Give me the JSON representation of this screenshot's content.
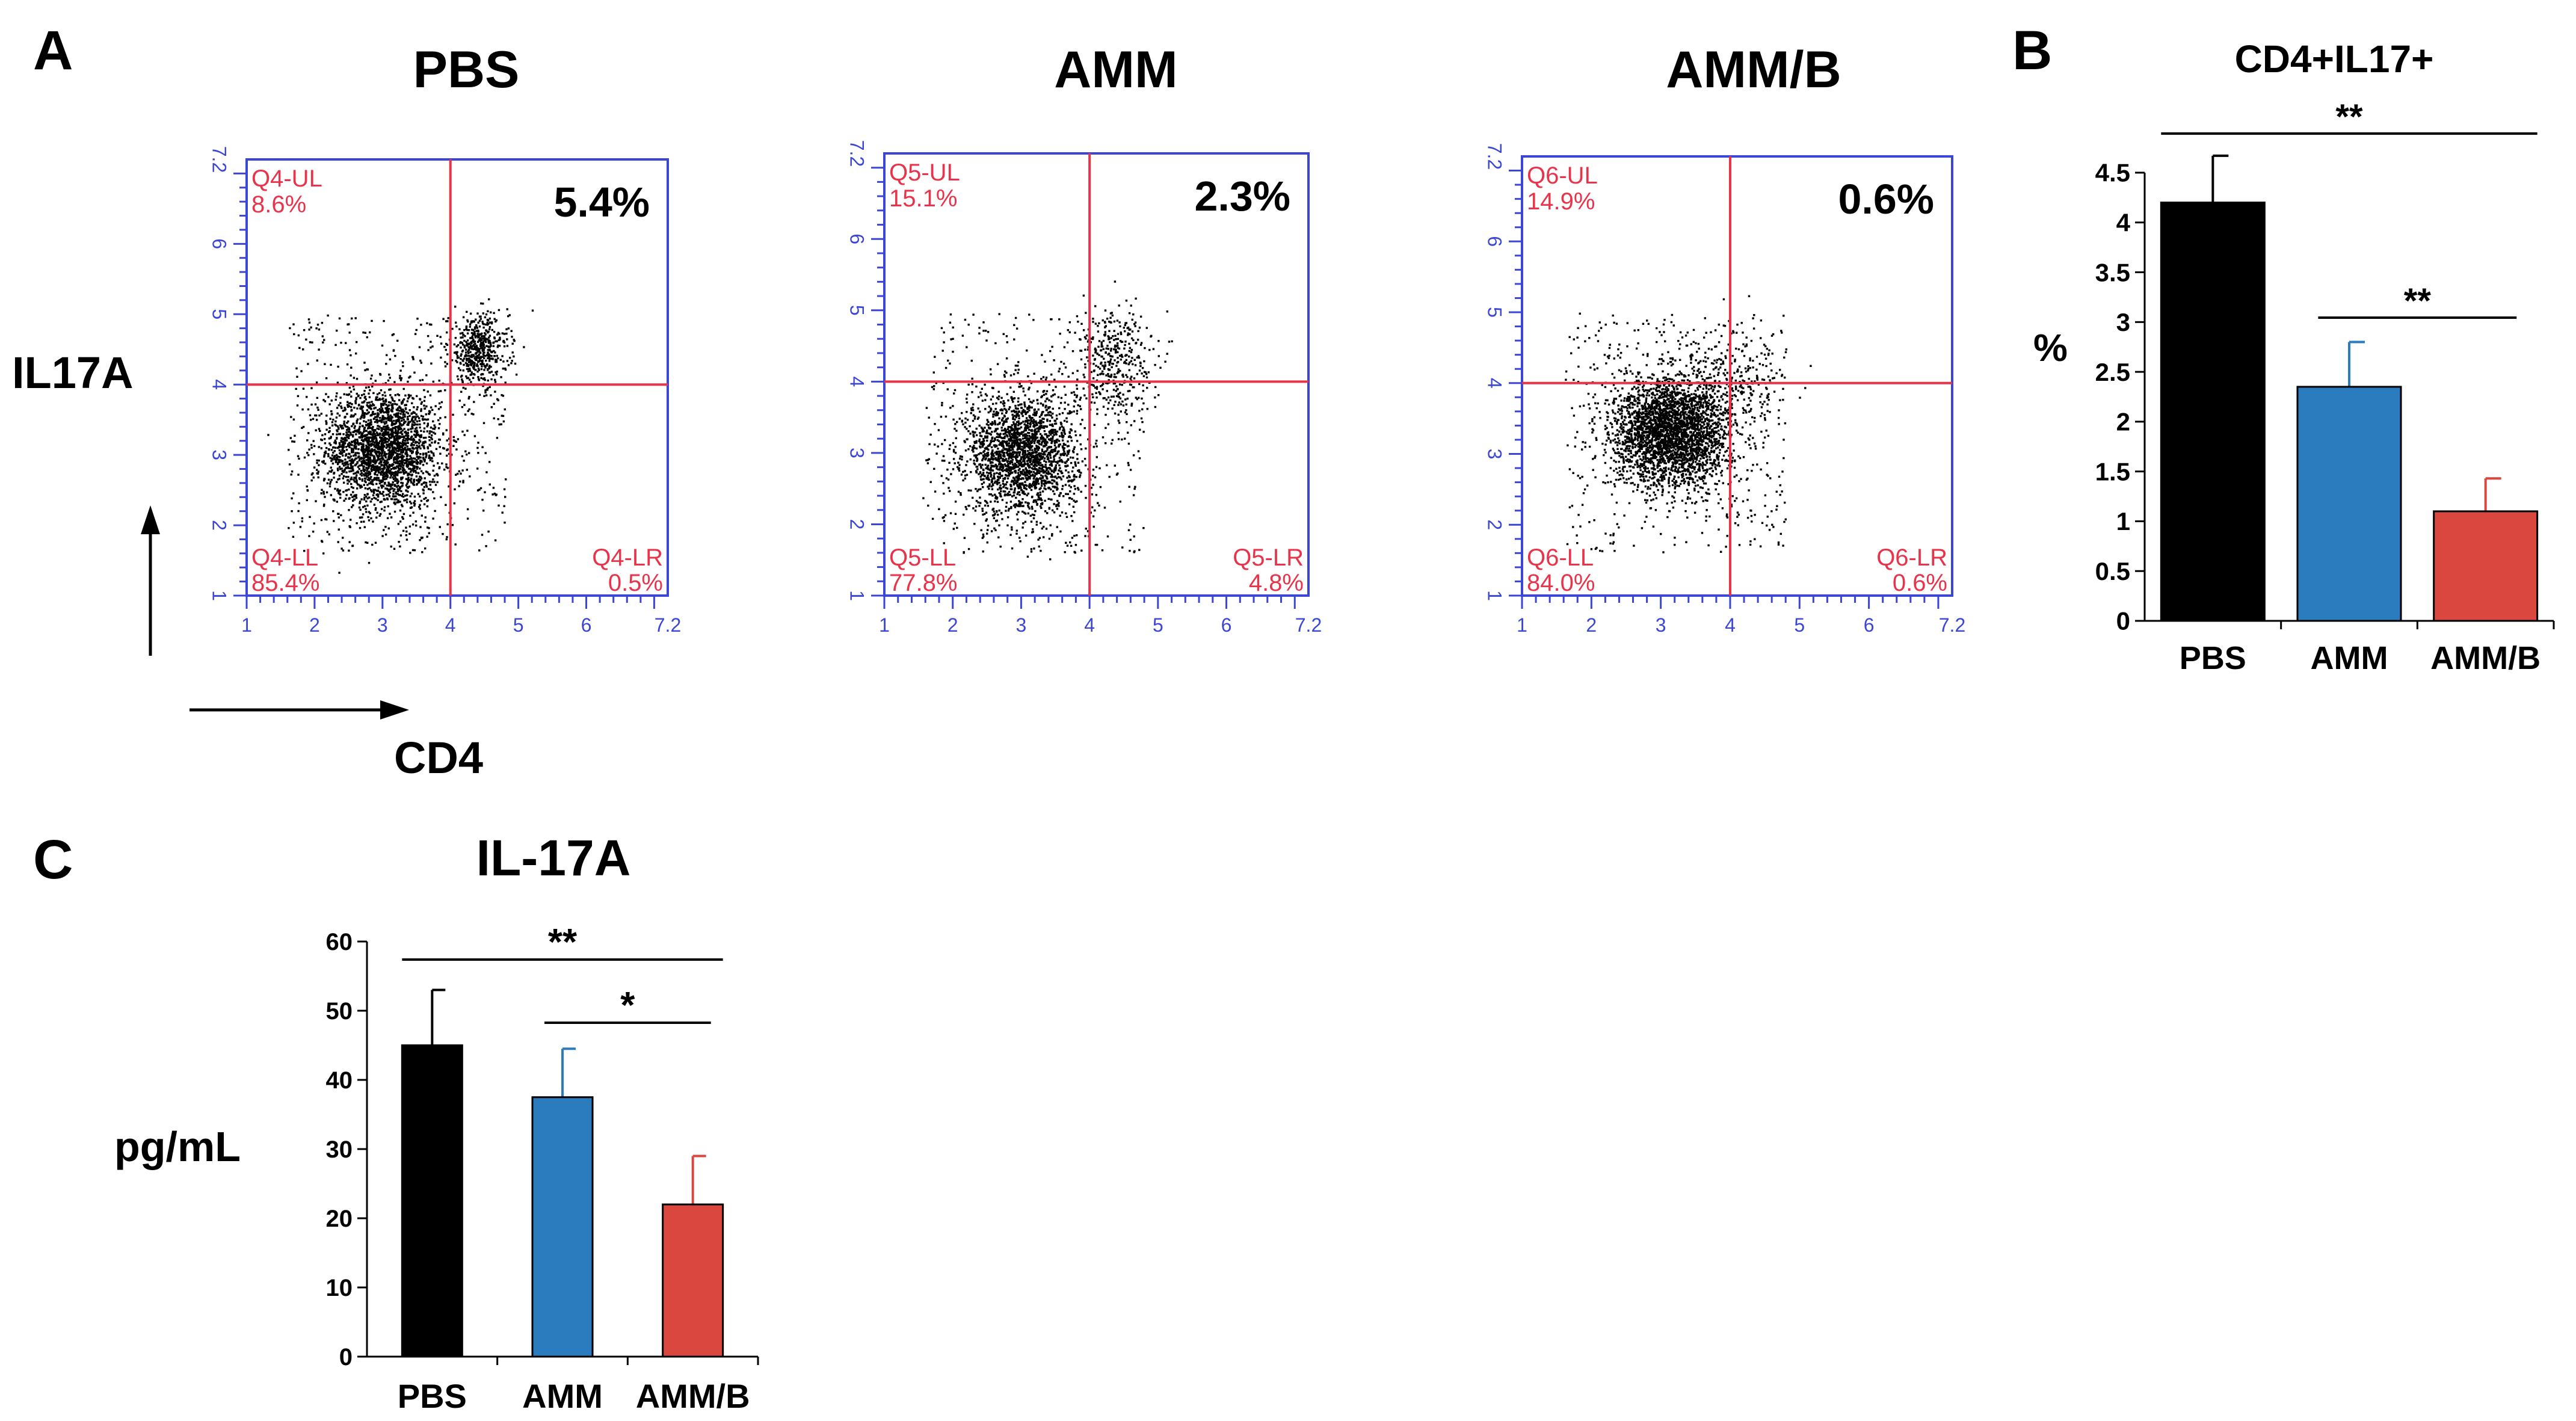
{
  "chart_data": [
    {
      "type": "scatter",
      "panel": "A",
      "panel_label": "A",
      "xlabel": "CD4",
      "ylabel": "IL17A",
      "x_ticks": [
        "1",
        "2",
        "3",
        "4",
        "5",
        "6",
        "7.2"
      ],
      "y_ticks": [
        "1",
        "2",
        "3",
        "4",
        "5",
        "6",
        "7.2"
      ],
      "gate": {
        "x": 4.0,
        "y": 4.0
      },
      "axis_range": [
        1,
        7.2
      ],
      "plots": [
        {
          "title": "PBS",
          "highlight": "5.4%",
          "quadrants": {
            "UL": [
              "Q4-UL",
              "8.6%"
            ],
            "LL": [
              "Q4-LL",
              "85.4%"
            ],
            "LR": [
              "Q4-LR",
              "0.5%"
            ]
          },
          "clusters": [
            {
              "cx": 3.0,
              "cy": 3.1,
              "sx": 0.42,
              "sy": 0.42,
              "n": 2300
            },
            {
              "cx": 4.4,
              "cy": 4.5,
              "sx": 0.22,
              "sy": 0.26,
              "n": 500
            }
          ],
          "noise": 450
        },
        {
          "title": "AMM",
          "highlight": "2.3%",
          "quadrants": {
            "UL": [
              "Q5-UL",
              "15.1%"
            ],
            "LL": [
              "Q5-LL",
              "77.8%"
            ],
            "LR": [
              "Q5-LR",
              "4.8%"
            ]
          },
          "clusters": [
            {
              "cx": 3.0,
              "cy": 3.0,
              "sx": 0.4,
              "sy": 0.42,
              "n": 2100
            },
            {
              "cx": 4.3,
              "cy": 4.3,
              "sx": 0.3,
              "sy": 0.38,
              "n": 380
            }
          ],
          "noise": 380
        },
        {
          "title": "AMM/B",
          "highlight": "0.6%",
          "quadrants": {
            "UL": [
              "Q6-UL",
              "14.9%"
            ],
            "LL": [
              "Q6-LL",
              "84.0%"
            ],
            "LR": [
              "Q6-LR",
              "0.6%"
            ]
          },
          "clusters": [
            {
              "cx": 3.15,
              "cy": 3.3,
              "sx": 0.42,
              "sy": 0.38,
              "n": 2900
            },
            {
              "cx": 3.9,
              "cy": 4.1,
              "sx": 0.45,
              "sy": 0.35,
              "n": 280
            }
          ],
          "noise": 420
        }
      ]
    },
    {
      "type": "bar",
      "panel": "B",
      "panel_label": "B",
      "title": "CD4+IL17+",
      "ylabel": "%",
      "xlabel": "",
      "categories": [
        "PBS",
        "AMM",
        "AMM/B"
      ],
      "values": [
        4.2,
        2.35,
        1.1
      ],
      "errors": [
        0.47,
        0.45,
        0.33
      ],
      "colors": [
        "#000000",
        "#2b7bbf",
        "#d9473f"
      ],
      "ylim": [
        0,
        4.5
      ],
      "yticks": [
        "0",
        "0.5",
        "1",
        "1.5",
        "2",
        "2.5",
        "3",
        "3.5",
        "4",
        "4.5"
      ],
      "significance": [
        {
          "from": 0,
          "to": 2,
          "label": "**"
        },
        {
          "from": 1,
          "to": 2,
          "label": "**"
        }
      ]
    },
    {
      "type": "bar",
      "panel": "C",
      "panel_label": "C",
      "title": "IL-17A",
      "ylabel": "pg/mL",
      "xlabel": "",
      "categories": [
        "PBS",
        "AMM",
        "AMM/B"
      ],
      "values": [
        45,
        37.5,
        22
      ],
      "errors": [
        8,
        7,
        7
      ],
      "colors": [
        "#000000",
        "#2b7bbf",
        "#d9473f"
      ],
      "ylim": [
        0,
        60
      ],
      "yticks": [
        "0",
        "10",
        "20",
        "30",
        "40",
        "50",
        "60"
      ],
      "significance": [
        {
          "from": 0,
          "to": 2,
          "label": "**"
        },
        {
          "from": 1,
          "to": 2,
          "label": "*"
        }
      ]
    }
  ]
}
